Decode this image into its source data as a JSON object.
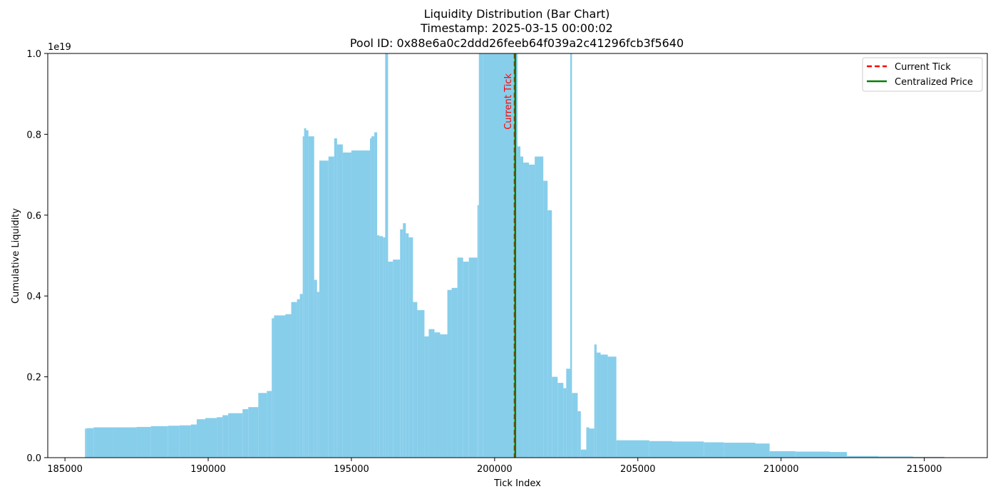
{
  "chart_data": {
    "type": "bar",
    "title_lines": [
      "Liquidity Distribution (Bar Chart)",
      "Timestamp: 2025-03-15 00:00:02",
      "Pool ID: 0x88e6a0c2ddd26feeb64f039a2c41296fcb3f5640"
    ],
    "xlabel": "Tick Index",
    "ylabel": "Cumulative Liquidity",
    "y_offset_text": "1e19",
    "xlim": [
      184400,
      217200
    ],
    "ylim": [
      0,
      1.0
    ],
    "x_ticks": [
      185000,
      190000,
      195000,
      200000,
      205000,
      210000,
      215000
    ],
    "x_tick_labels": [
      "185000",
      "190000",
      "195000",
      "200000",
      "205000",
      "210000",
      "215000"
    ],
    "y_ticks": [
      0.0,
      0.2,
      0.4,
      0.6,
      0.8,
      1.0
    ],
    "y_tick_labels": [
      "0.0",
      "0.2",
      "0.4",
      "0.6",
      "0.8",
      "1.0"
    ],
    "bar_color": "#87ceeb",
    "current_tick": 200700,
    "current_tick_color": "#ff0000",
    "current_tick_annotation": "Current Tick",
    "centralized_price_tick": 200720,
    "centralized_price_color": "#008000",
    "legend": {
      "placement": "top-right",
      "entries": [
        {
          "label": "Current Tick",
          "color": "#ff0000",
          "style": "dashed"
        },
        {
          "label": "Centralized Price",
          "color": "#008000",
          "style": "solid"
        }
      ]
    },
    "bars": [
      [
        185700,
        185760,
        0.072
      ],
      [
        185760,
        186000,
        0.073
      ],
      [
        186000,
        186700,
        0.075
      ],
      [
        186700,
        187500,
        0.075
      ],
      [
        187500,
        188000,
        0.076
      ],
      [
        188000,
        188600,
        0.078
      ],
      [
        188600,
        189000,
        0.079
      ],
      [
        189000,
        189400,
        0.08
      ],
      [
        189400,
        189600,
        0.082
      ],
      [
        189600,
        189900,
        0.095
      ],
      [
        189900,
        190300,
        0.098
      ],
      [
        190300,
        190500,
        0.1
      ],
      [
        190500,
        190700,
        0.105
      ],
      [
        190700,
        191200,
        0.11
      ],
      [
        191200,
        191400,
        0.12
      ],
      [
        191400,
        191750,
        0.125
      ],
      [
        191750,
        192050,
        0.16
      ],
      [
        192050,
        192220,
        0.165
      ],
      [
        192220,
        192300,
        0.345
      ],
      [
        192300,
        192700,
        0.352
      ],
      [
        192700,
        192900,
        0.355
      ],
      [
        192900,
        193100,
        0.385
      ],
      [
        193100,
        193200,
        0.392
      ],
      [
        193200,
        193300,
        0.405
      ],
      [
        193300,
        193350,
        0.795
      ],
      [
        193350,
        193420,
        0.815
      ],
      [
        193420,
        193500,
        0.81
      ],
      [
        193500,
        193700,
        0.795
      ],
      [
        193700,
        193800,
        0.44
      ],
      [
        193800,
        193880,
        0.41
      ],
      [
        193880,
        194200,
        0.735
      ],
      [
        194200,
        194400,
        0.745
      ],
      [
        194400,
        194500,
        0.79
      ],
      [
        194500,
        194700,
        0.775
      ],
      [
        194700,
        195000,
        0.755
      ],
      [
        195000,
        195450,
        0.76
      ],
      [
        195450,
        195650,
        0.76
      ],
      [
        195650,
        195700,
        0.79
      ],
      [
        195700,
        195800,
        0.795
      ],
      [
        195800,
        195900,
        0.805
      ],
      [
        195900,
        195980,
        0.55
      ],
      [
        195980,
        196100,
        0.548
      ],
      [
        196100,
        196180,
        0.545
      ],
      [
        196180,
        196280,
        1.0
      ],
      [
        196280,
        196450,
        0.485
      ],
      [
        196450,
        196700,
        0.49
      ],
      [
        196700,
        196800,
        0.565
      ],
      [
        196800,
        196900,
        0.58
      ],
      [
        196900,
        197000,
        0.555
      ],
      [
        197000,
        197150,
        0.545
      ],
      [
        197150,
        197300,
        0.385
      ],
      [
        197300,
        197550,
        0.365
      ],
      [
        197550,
        197700,
        0.3
      ],
      [
        197700,
        197900,
        0.318
      ],
      [
        197900,
        198100,
        0.31
      ],
      [
        198100,
        198350,
        0.305
      ],
      [
        198350,
        198500,
        0.415
      ],
      [
        198500,
        198700,
        0.42
      ],
      [
        198700,
        198900,
        0.495
      ],
      [
        198900,
        199100,
        0.485
      ],
      [
        199100,
        199400,
        0.495
      ],
      [
        199400,
        199450,
        0.625
      ],
      [
        199450,
        199600,
        1.0
      ],
      [
        199600,
        200800,
        1.0
      ],
      [
        200800,
        200900,
        0.77
      ],
      [
        200900,
        201000,
        0.745
      ],
      [
        201000,
        201200,
        0.73
      ],
      [
        201200,
        201400,
        0.725
      ],
      [
        201400,
        201700,
        0.745
      ],
      [
        201700,
        201850,
        0.685
      ],
      [
        201850,
        202000,
        0.612
      ],
      [
        202000,
        202200,
        0.2
      ],
      [
        202200,
        202400,
        0.185
      ],
      [
        202400,
        202500,
        0.172
      ],
      [
        202500,
        202640,
        0.22
      ],
      [
        202640,
        202700,
        1.0
      ],
      [
        202700,
        202900,
        0.16
      ],
      [
        202900,
        203010,
        0.115
      ],
      [
        203010,
        203200,
        0.02
      ],
      [
        203200,
        203300,
        0.075
      ],
      [
        203300,
        203480,
        0.072
      ],
      [
        203480,
        203560,
        0.28
      ],
      [
        203560,
        203700,
        0.26
      ],
      [
        203700,
        203950,
        0.255
      ],
      [
        203950,
        204250,
        0.25
      ],
      [
        204250,
        205400,
        0.043
      ],
      [
        205400,
        206200,
        0.041
      ],
      [
        206200,
        207300,
        0.04
      ],
      [
        207300,
        208000,
        0.038
      ],
      [
        208000,
        209100,
        0.037
      ],
      [
        209100,
        209600,
        0.035
      ],
      [
        209600,
        210500,
        0.016
      ],
      [
        210500,
        211700,
        0.015
      ],
      [
        211700,
        212300,
        0.014
      ],
      [
        212300,
        213400,
        0.004
      ],
      [
        213400,
        214600,
        0.003
      ],
      [
        214600,
        215700,
        0.002
      ]
    ]
  }
}
